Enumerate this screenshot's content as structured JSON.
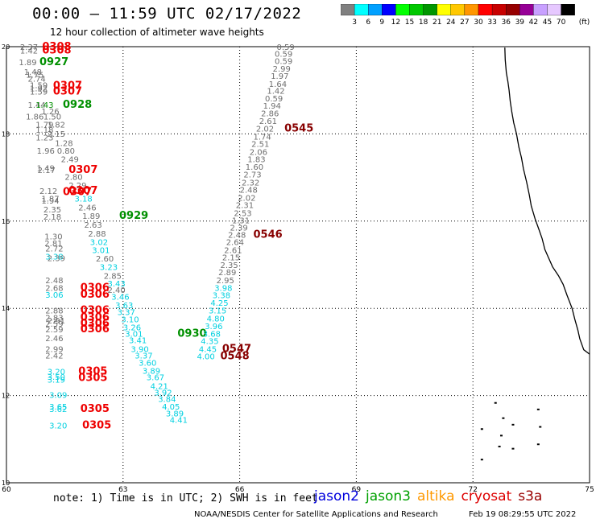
{
  "title": "00:00 – 11:59 UTC 02/17/2022",
  "subtitle": "12 hour collection of altimeter wave heights",
  "legend": {
    "colors": [
      "#808080",
      "#00ffff",
      "#00a0ff",
      "#0000ff",
      "#00ff00",
      "#00c800",
      "#009600",
      "#ffff00",
      "#ffc800",
      "#ff9600",
      "#ff0000",
      "#c80000",
      "#960000",
      "#960096",
      "#c8a0ff",
      "#e6c8ff",
      "#000000"
    ],
    "labels": [
      "3",
      "6",
      "9",
      "12",
      "15",
      "18",
      "21",
      "24",
      "27",
      "30",
      "33",
      "36",
      "39",
      "42",
      "45",
      "70"
    ],
    "unit": "(ft)"
  },
  "axes": {
    "x_ticks": [
      {
        "v": 60,
        "label": "60"
      },
      {
        "v": 63,
        "label": "63"
      },
      {
        "v": 66,
        "label": "66"
      },
      {
        "v": 69,
        "label": "69"
      },
      {
        "v": 72,
        "label": "72"
      },
      {
        "v": 75,
        "label": "75"
      }
    ],
    "y_ticks": [
      {
        "v": 10,
        "label": "10"
      },
      {
        "v": 12,
        "label": "12"
      },
      {
        "v": 14,
        "label": "14"
      },
      {
        "v": 16,
        "label": "16"
      },
      {
        "v": 18,
        "label": "18"
      },
      {
        "v": 20,
        "label": "20"
      }
    ]
  },
  "note": "note: 1) Time is in UTC; 2) SWH is in feet",
  "satellites": [
    {
      "name": "jason2",
      "color": "#0000dd"
    },
    {
      "name": "jason3",
      "color": "#00a000"
    },
    {
      "name": "altika",
      "color": "#ff9900"
    },
    {
      "name": "cryosat",
      "color": "#dd0000"
    },
    {
      "name": "s3a",
      "color": "#990000"
    }
  ],
  "credit": "NOAA/NESDIS Center for Satellite Applications and Research",
  "stamp": "Feb 19 08:29:55 UTC 2022",
  "colors": {
    "gray": "#6e6e6e",
    "cyan": "#00d0e0",
    "red": "#ee0000",
    "green": "#009000",
    "darkred": "#880000"
  },
  "labels": [
    {
      "x": 60.35,
      "y": 19.93,
      "t": "2.37",
      "c": "gray",
      "s": 10
    },
    {
      "x": 60.35,
      "y": 19.84,
      "t": "1.42",
      "c": "gray",
      "s": 10
    },
    {
      "x": 60.92,
      "y": 19.93,
      "t": "0308",
      "c": "red",
      "s": 13
    },
    {
      "x": 60.92,
      "y": 19.84,
      "t": "0308",
      "c": "red",
      "s": 13
    },
    {
      "x": 60.32,
      "y": 19.58,
      "t": "1.89",
      "c": "gray",
      "s": 10
    },
    {
      "x": 60.85,
      "y": 19.58,
      "t": "0927",
      "c": "green",
      "s": 13
    },
    {
      "x": 60.45,
      "y": 19.35,
      "t": "1.48",
      "c": "gray",
      "s": 10
    },
    {
      "x": 60.5,
      "y": 19.29,
      "t": "1.75",
      "c": "gray",
      "s": 10
    },
    {
      "x": 60.55,
      "y": 19.2,
      "t": "2.74",
      "c": "gray",
      "s": 10
    },
    {
      "x": 60.6,
      "y": 19.05,
      "t": "1.59",
      "c": "gray",
      "s": 10
    },
    {
      "x": 60.6,
      "y": 18.98,
      "t": "1.92",
      "c": "gray",
      "s": 10
    },
    {
      "x": 60.6,
      "y": 18.9,
      "t": "1.59",
      "c": "gray",
      "s": 10
    },
    {
      "x": 61.2,
      "y": 19.03,
      "t": "0307",
      "c": "red",
      "s": 13
    },
    {
      "x": 61.2,
      "y": 18.9,
      "t": "0307",
      "c": "red",
      "s": 13
    },
    {
      "x": 60.55,
      "y": 18.6,
      "t": "1.44",
      "c": "gray",
      "s": 10
    },
    {
      "x": 60.75,
      "y": 18.6,
      "t": "1.43",
      "c": "green",
      "s": 10
    },
    {
      "x": 61.45,
      "y": 18.6,
      "t": "0928",
      "c": "green",
      "s": 13
    },
    {
      "x": 60.9,
      "y": 18.45,
      "t": "1.26",
      "c": "gray",
      "s": 10
    },
    {
      "x": 60.5,
      "y": 18.33,
      "t": "1.86",
      "c": "gray",
      "s": 10
    },
    {
      "x": 60.95,
      "y": 18.33,
      "t": "1.50",
      "c": "gray",
      "s": 10
    },
    {
      "x": 60.75,
      "y": 18.15,
      "t": "1.79",
      "c": "gray",
      "s": 10
    },
    {
      "x": 61.05,
      "y": 18.15,
      "t": "1.82",
      "c": "gray",
      "s": 10
    },
    {
      "x": 60.75,
      "y": 18.03,
      "t": "1.18",
      "c": "gray",
      "s": 10
    },
    {
      "x": 61.05,
      "y": 17.93,
      "t": "2.15",
      "c": "gray",
      "s": 10
    },
    {
      "x": 60.75,
      "y": 17.85,
      "t": "1.23",
      "c": "gray",
      "s": 10
    },
    {
      "x": 61.25,
      "y": 17.72,
      "t": "1.28",
      "c": "gray",
      "s": 10
    },
    {
      "x": 60.78,
      "y": 17.55,
      "t": "1.96",
      "c": "gray",
      "s": 10
    },
    {
      "x": 61.3,
      "y": 17.55,
      "t": "0.80",
      "c": "gray",
      "s": 10
    },
    {
      "x": 61.4,
      "y": 17.35,
      "t": "2.49",
      "c": "gray",
      "s": 10
    },
    {
      "x": 60.78,
      "y": 17.15,
      "t": "1.49",
      "c": "gray",
      "s": 10
    },
    {
      "x": 60.8,
      "y": 17.1,
      "t": "2.17",
      "c": "gray",
      "s": 10
    },
    {
      "x": 61.6,
      "y": 17.1,
      "t": "0307",
      "c": "red",
      "s": 13
    },
    {
      "x": 61.5,
      "y": 16.95,
      "t": "2.80",
      "c": "gray",
      "s": 10
    },
    {
      "x": 61.6,
      "y": 16.75,
      "t": "2.29",
      "c": "gray",
      "s": 10
    },
    {
      "x": 60.85,
      "y": 16.62,
      "t": "2.12",
      "c": "gray",
      "s": 10
    },
    {
      "x": 61.6,
      "y": 16.62,
      "t": "0307",
      "c": "red",
      "s": 13
    },
    {
      "x": 61.45,
      "y": 16.6,
      "t": "0307",
      "c": "red",
      "s": 13
    },
    {
      "x": 60.9,
      "y": 16.45,
      "t": "1.87",
      "c": "gray",
      "s": 10
    },
    {
      "x": 60.9,
      "y": 16.4,
      "t": "1.94",
      "c": "gray",
      "s": 10
    },
    {
      "x": 61.75,
      "y": 16.45,
      "t": "3.18",
      "c": "cyan",
      "s": 10
    },
    {
      "x": 61.85,
      "y": 16.25,
      "t": "2.46",
      "c": "gray",
      "s": 10
    },
    {
      "x": 60.95,
      "y": 16.2,
      "t": "2.35",
      "c": "gray",
      "s": 10
    },
    {
      "x": 61.95,
      "y": 16.05,
      "t": "1.89",
      "c": "gray",
      "s": 10
    },
    {
      "x": 62.9,
      "y": 16.05,
      "t": "0929",
      "c": "green",
      "s": 13
    },
    {
      "x": 60.95,
      "y": 16.03,
      "t": "2.18",
      "c": "gray",
      "s": 10
    },
    {
      "x": 62.0,
      "y": 15.85,
      "t": "2.63",
      "c": "gray",
      "s": 10
    },
    {
      "x": 62.1,
      "y": 15.65,
      "t": "2.88",
      "c": "gray",
      "s": 10
    },
    {
      "x": 60.98,
      "y": 15.58,
      "t": "1.30",
      "c": "gray",
      "s": 10
    },
    {
      "x": 62.15,
      "y": 15.45,
      "t": "3.02",
      "c": "cyan",
      "s": 10
    },
    {
      "x": 60.98,
      "y": 15.42,
      "t": "2.81",
      "c": "gray",
      "s": 10
    },
    {
      "x": 61.0,
      "y": 15.3,
      "t": "2.72",
      "c": "gray",
      "s": 10
    },
    {
      "x": 62.2,
      "y": 15.27,
      "t": "3.01",
      "c": "cyan",
      "s": 10
    },
    {
      "x": 61.0,
      "y": 15.12,
      "t": "3.38",
      "c": "cyan",
      "s": 10
    },
    {
      "x": 61.05,
      "y": 15.08,
      "t": "2.39",
      "c": "gray",
      "s": 10
    },
    {
      "x": 62.3,
      "y": 15.07,
      "t": "2.60",
      "c": "gray",
      "s": 10
    },
    {
      "x": 62.4,
      "y": 14.88,
      "t": "3.23",
      "c": "cyan",
      "s": 10
    },
    {
      "x": 62.5,
      "y": 14.68,
      "t": "2.85",
      "c": "gray",
      "s": 10
    },
    {
      "x": 61.0,
      "y": 14.58,
      "t": "2.48",
      "c": "gray",
      "s": 10
    },
    {
      "x": 62.6,
      "y": 14.5,
      "t": "3.43",
      "c": "cyan",
      "s": 10
    },
    {
      "x": 61.0,
      "y": 14.4,
      "t": "2.68",
      "c": "gray",
      "s": 10
    },
    {
      "x": 61.9,
      "y": 14.4,
      "t": "0306",
      "c": "red",
      "s": 13
    },
    {
      "x": 62.6,
      "y": 14.35,
      "t": "2.40",
      "c": "gray",
      "s": 10
    },
    {
      "x": 61.0,
      "y": 14.24,
      "t": "3.06",
      "c": "cyan",
      "s": 10
    },
    {
      "x": 61.9,
      "y": 14.24,
      "t": "0306",
      "c": "red",
      "s": 13
    },
    {
      "x": 62.7,
      "y": 14.2,
      "t": "3.46",
      "c": "cyan",
      "s": 10
    },
    {
      "x": 62.8,
      "y": 14.0,
      "t": "3.63",
      "c": "cyan",
      "s": 10
    },
    {
      "x": 61.0,
      "y": 13.88,
      "t": "2.88",
      "c": "gray",
      "s": 10
    },
    {
      "x": 61.9,
      "y": 13.88,
      "t": "0306",
      "c": "red",
      "s": 13
    },
    {
      "x": 62.85,
      "y": 13.85,
      "t": "3.37",
      "c": "cyan",
      "s": 10
    },
    {
      "x": 61.0,
      "y": 13.72,
      "t": "2.83",
      "c": "gray",
      "s": 10
    },
    {
      "x": 61.9,
      "y": 13.72,
      "t": "0306",
      "c": "red",
      "s": 13
    },
    {
      "x": 61.05,
      "y": 13.65,
      "t": "2.91",
      "c": "gray",
      "s": 10
    },
    {
      "x": 62.95,
      "y": 13.68,
      "t": "3.10",
      "c": "cyan",
      "s": 10
    },
    {
      "x": 61.0,
      "y": 13.58,
      "t": "2.59",
      "c": "gray",
      "s": 10
    },
    {
      "x": 61.9,
      "y": 13.58,
      "t": "0306",
      "c": "red",
      "s": 13
    },
    {
      "x": 61.0,
      "y": 13.45,
      "t": "2.59",
      "c": "gray",
      "s": 10
    },
    {
      "x": 61.9,
      "y": 13.45,
      "t": "0306",
      "c": "red",
      "s": 13
    },
    {
      "x": 63.0,
      "y": 13.5,
      "t": "3.26",
      "c": "cyan",
      "s": 10
    },
    {
      "x": 63.05,
      "y": 13.35,
      "t": "3.01",
      "c": "cyan",
      "s": 10
    },
    {
      "x": 64.4,
      "y": 13.35,
      "t": "0930",
      "c": "green",
      "s": 13
    },
    {
      "x": 61.0,
      "y": 13.25,
      "t": "2.46",
      "c": "gray",
      "s": 10
    },
    {
      "x": 63.15,
      "y": 13.2,
      "t": "3.41",
      "c": "cyan",
      "s": 10
    },
    {
      "x": 61.0,
      "y": 13.0,
      "t": "2.99",
      "c": "gray",
      "s": 10
    },
    {
      "x": 63.2,
      "y": 13.0,
      "t": "3.90",
      "c": "cyan",
      "s": 10
    },
    {
      "x": 61.0,
      "y": 12.85,
      "t": "2.42",
      "c": "gray",
      "s": 10
    },
    {
      "x": 63.3,
      "y": 12.85,
      "t": "3.37",
      "c": "cyan",
      "s": 10
    },
    {
      "x": 63.4,
      "y": 12.68,
      "t": "3.60",
      "c": "cyan",
      "s": 10
    },
    {
      "x": 61.05,
      "y": 12.48,
      "t": "3.20",
      "c": "cyan",
      "s": 10
    },
    {
      "x": 61.85,
      "y": 12.48,
      "t": "0305",
      "c": "red",
      "s": 13
    },
    {
      "x": 63.5,
      "y": 12.5,
      "t": "3.89",
      "c": "cyan",
      "s": 10
    },
    {
      "x": 61.05,
      "y": 12.36,
      "t": "3.50",
      "c": "cyan",
      "s": 10
    },
    {
      "x": 61.05,
      "y": 12.3,
      "t": "3.19",
      "c": "cyan",
      "s": 10
    },
    {
      "x": 61.85,
      "y": 12.33,
      "t": "0305",
      "c": "red",
      "s": 13
    },
    {
      "x": 63.6,
      "y": 12.35,
      "t": "3.67",
      "c": "cyan",
      "s": 10
    },
    {
      "x": 63.7,
      "y": 12.15,
      "t": "4.21",
      "c": "cyan",
      "s": 10
    },
    {
      "x": 61.1,
      "y": 11.95,
      "t": "3.09",
      "c": "cyan",
      "s": 10
    },
    {
      "x": 63.8,
      "y": 12.0,
      "t": "3.92",
      "c": "cyan",
      "s": 10
    },
    {
      "x": 63.9,
      "y": 11.85,
      "t": "3.84",
      "c": "cyan",
      "s": 10
    },
    {
      "x": 61.1,
      "y": 11.68,
      "t": "3.65",
      "c": "cyan",
      "s": 10
    },
    {
      "x": 61.1,
      "y": 11.62,
      "t": "3.62",
      "c": "cyan",
      "s": 10
    },
    {
      "x": 61.9,
      "y": 11.62,
      "t": "0305",
      "c": "red",
      "s": 13
    },
    {
      "x": 64.0,
      "y": 11.68,
      "t": "4.05",
      "c": "cyan",
      "s": 10
    },
    {
      "x": 64.1,
      "y": 11.52,
      "t": "3.89",
      "c": "cyan",
      "s": 10
    },
    {
      "x": 64.2,
      "y": 11.37,
      "t": "4.41",
      "c": "cyan",
      "s": 10
    },
    {
      "x": 61.1,
      "y": 11.25,
      "t": "3.20",
      "c": "cyan",
      "s": 10
    },
    {
      "x": 61.95,
      "y": 11.25,
      "t": "0305",
      "c": "red",
      "s": 13
    },
    {
      "x": 66.95,
      "y": 19.93,
      "t": "0.59",
      "c": "gray",
      "s": 10
    },
    {
      "x": 66.9,
      "y": 19.77,
      "t": "0.59",
      "c": "gray",
      "s": 10
    },
    {
      "x": 66.9,
      "y": 19.6,
      "t": "0.59",
      "c": "gray",
      "s": 10
    },
    {
      "x": 66.85,
      "y": 19.43,
      "t": "2.99",
      "c": "gray",
      "s": 10
    },
    {
      "x": 66.8,
      "y": 19.26,
      "t": "1.97",
      "c": "gray",
      "s": 10
    },
    {
      "x": 66.75,
      "y": 19.08,
      "t": "1.64",
      "c": "gray",
      "s": 10
    },
    {
      "x": 66.7,
      "y": 18.92,
      "t": "1.42",
      "c": "gray",
      "s": 10
    },
    {
      "x": 66.65,
      "y": 18.75,
      "t": "0.59",
      "c": "gray",
      "s": 10
    },
    {
      "x": 66.6,
      "y": 18.58,
      "t": "1.94",
      "c": "gray",
      "s": 10
    },
    {
      "x": 66.55,
      "y": 18.4,
      "t": "2.86",
      "c": "gray",
      "s": 10
    },
    {
      "x": 66.5,
      "y": 18.23,
      "t": "2.61",
      "c": "gray",
      "s": 10
    },
    {
      "x": 66.42,
      "y": 18.05,
      "t": "2.02",
      "c": "gray",
      "s": 10
    },
    {
      "x": 67.15,
      "y": 18.05,
      "t": "0545",
      "c": "darkred",
      "s": 13
    },
    {
      "x": 66.35,
      "y": 17.87,
      "t": "1.74",
      "c": "gray",
      "s": 10
    },
    {
      "x": 66.3,
      "y": 17.7,
      "t": "2.51",
      "c": "gray",
      "s": 10
    },
    {
      "x": 66.25,
      "y": 17.52,
      "t": "2.06",
      "c": "gray",
      "s": 10
    },
    {
      "x": 66.2,
      "y": 17.35,
      "t": "1.83",
      "c": "gray",
      "s": 10
    },
    {
      "x": 66.15,
      "y": 17.18,
      "t": "1.60",
      "c": "gray",
      "s": 10
    },
    {
      "x": 66.1,
      "y": 17.0,
      "t": "2.73",
      "c": "gray",
      "s": 10
    },
    {
      "x": 66.05,
      "y": 16.82,
      "t": "2.32",
      "c": "gray",
      "s": 10
    },
    {
      "x": 66.0,
      "y": 16.65,
      "t": "2.48",
      "c": "gray",
      "s": 10
    },
    {
      "x": 65.95,
      "y": 16.47,
      "t": "2.02",
      "c": "gray",
      "s": 10
    },
    {
      "x": 65.9,
      "y": 16.3,
      "t": "2.31",
      "c": "gray",
      "s": 10
    },
    {
      "x": 65.85,
      "y": 16.12,
      "t": "2.53",
      "c": "gray",
      "s": 10
    },
    {
      "x": 65.8,
      "y": 15.95,
      "t": "1.31",
      "c": "gray",
      "s": 10
    },
    {
      "x": 65.75,
      "y": 15.78,
      "t": "2.39",
      "c": "gray",
      "s": 10
    },
    {
      "x": 65.7,
      "y": 15.62,
      "t": "2.48",
      "c": "gray",
      "s": 10
    },
    {
      "x": 66.35,
      "y": 15.62,
      "t": "0546",
      "c": "darkred",
      "s": 13
    },
    {
      "x": 65.65,
      "y": 15.45,
      "t": "2.64",
      "c": "gray",
      "s": 10
    },
    {
      "x": 65.6,
      "y": 15.27,
      "t": "2.61",
      "c": "gray",
      "s": 10
    },
    {
      "x": 65.55,
      "y": 15.1,
      "t": "2.15",
      "c": "gray",
      "s": 10
    },
    {
      "x": 65.5,
      "y": 14.93,
      "t": "2.35",
      "c": "gray",
      "s": 10
    },
    {
      "x": 65.45,
      "y": 14.76,
      "t": "2.89",
      "c": "gray",
      "s": 10
    },
    {
      "x": 65.4,
      "y": 14.58,
      "t": "2.95",
      "c": "gray",
      "s": 10
    },
    {
      "x": 65.35,
      "y": 14.4,
      "t": "3.98",
      "c": "cyan",
      "s": 10
    },
    {
      "x": 65.3,
      "y": 14.23,
      "t": "3.38",
      "c": "cyan",
      "s": 10
    },
    {
      "x": 65.25,
      "y": 14.06,
      "t": "4.25",
      "c": "cyan",
      "s": 10
    },
    {
      "x": 65.2,
      "y": 13.88,
      "t": "3.15",
      "c": "cyan",
      "s": 10
    },
    {
      "x": 65.15,
      "y": 13.7,
      "t": "4.80",
      "c": "cyan",
      "s": 10
    },
    {
      "x": 65.1,
      "y": 13.52,
      "t": "3.96",
      "c": "cyan",
      "s": 10
    },
    {
      "x": 65.05,
      "y": 13.35,
      "t": "3.68",
      "c": "cyan",
      "s": 10
    },
    {
      "x": 65.0,
      "y": 13.18,
      "t": "4.35",
      "c": "cyan",
      "s": 10
    },
    {
      "x": 64.95,
      "y": 13.0,
      "t": "4.45",
      "c": "cyan",
      "s": 10
    },
    {
      "x": 65.55,
      "y": 13.0,
      "t": "0547",
      "c": "darkred",
      "s": 13
    },
    {
      "x": 64.9,
      "y": 12.83,
      "t": "4.00",
      "c": "cyan",
      "s": 10
    },
    {
      "x": 65.5,
      "y": 12.83,
      "t": "0548",
      "c": "darkred",
      "s": 13
    }
  ]
}
